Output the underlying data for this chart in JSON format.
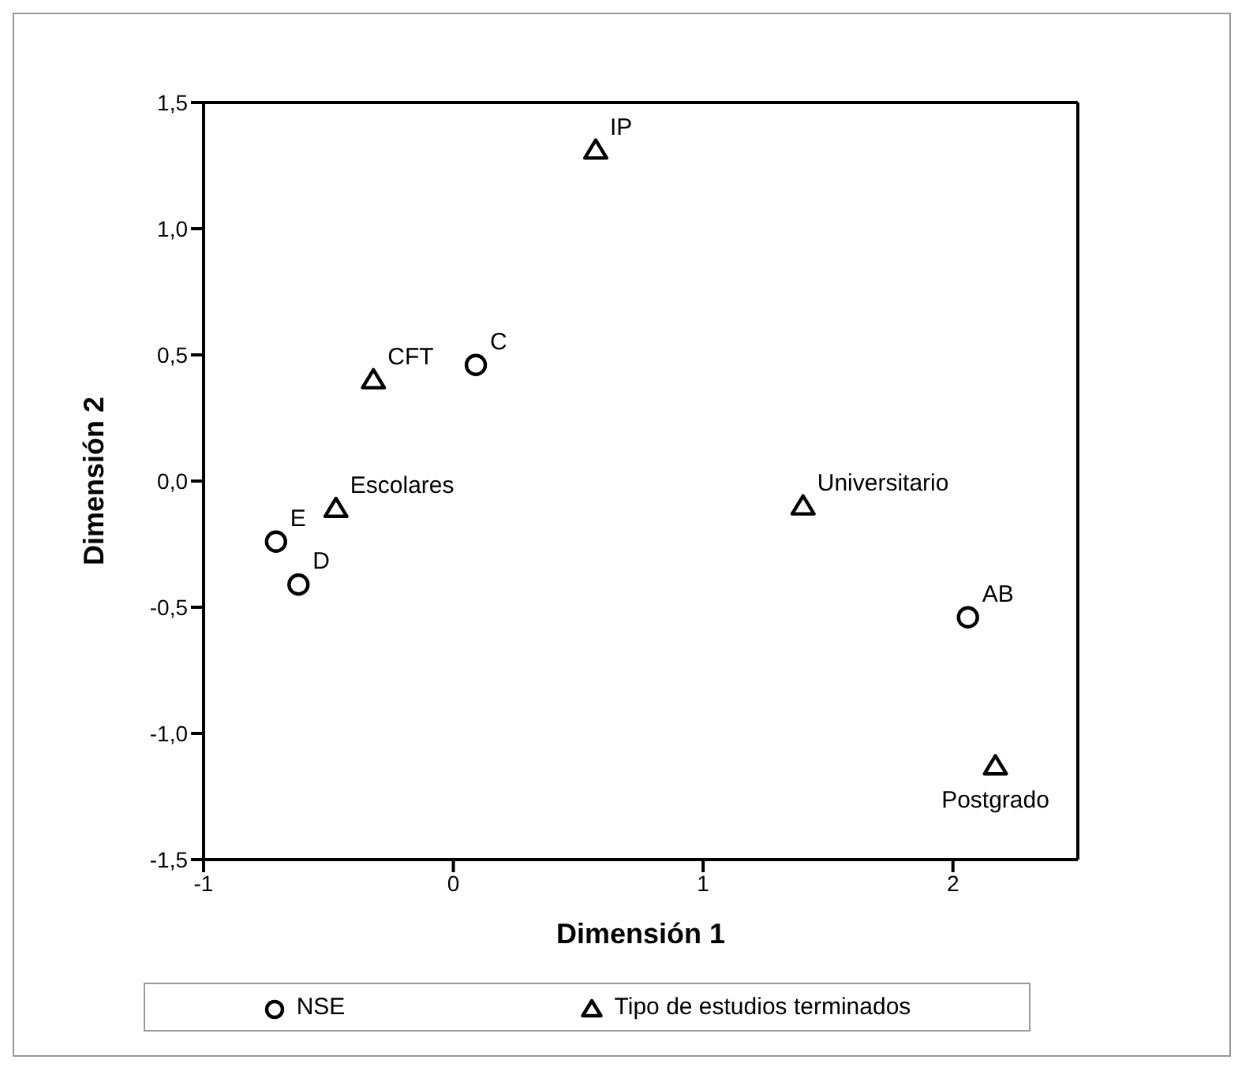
{
  "chart_data": {
    "type": "scatter",
    "xlabel": "Dimensión 1",
    "ylabel": "Dimensión 2",
    "xlim": [
      -1,
      2.5
    ],
    "xticks": [
      -1,
      0,
      1,
      2
    ],
    "ylim": [
      -1.5,
      1.5
    ],
    "yticks": [
      {
        "value": 1.5,
        "label": "1,5"
      },
      {
        "value": 1,
        "label": "1,0"
      },
      {
        "value": 0.5,
        "label": "0,5"
      },
      {
        "value": 0,
        "label": "0,0"
      },
      {
        "value": -0.5,
        "label": "-0,5"
      },
      {
        "value": -1,
        "label": "-1,0"
      },
      {
        "value": -1.5,
        "label": "-1,5"
      }
    ],
    "grid": false,
    "legend": "bottom",
    "series": [
      {
        "name": "NSE",
        "color": "#000000",
        "marker": "circle",
        "x": [
          -0.71,
          -0.62,
          0.09,
          2.06
        ],
        "values": [
          -0.24,
          -0.41,
          0.46,
          -0.54
        ],
        "value_labels": [
          "E",
          "D",
          "C",
          "AB"
        ]
      },
      {
        "name": "Tipo de estudios terminados",
        "color": "#000000",
        "marker": "triangle",
        "x": [
          -0.47,
          -0.32,
          0.57,
          1.4,
          2.17
        ],
        "values": [
          -0.11,
          0.4,
          1.31,
          -0.1,
          -1.13
        ],
        "value_labels": [
          "Escolares",
          "CFT",
          "IP",
          "Universitario",
          "Postgrado"
        ]
      }
    ]
  }
}
